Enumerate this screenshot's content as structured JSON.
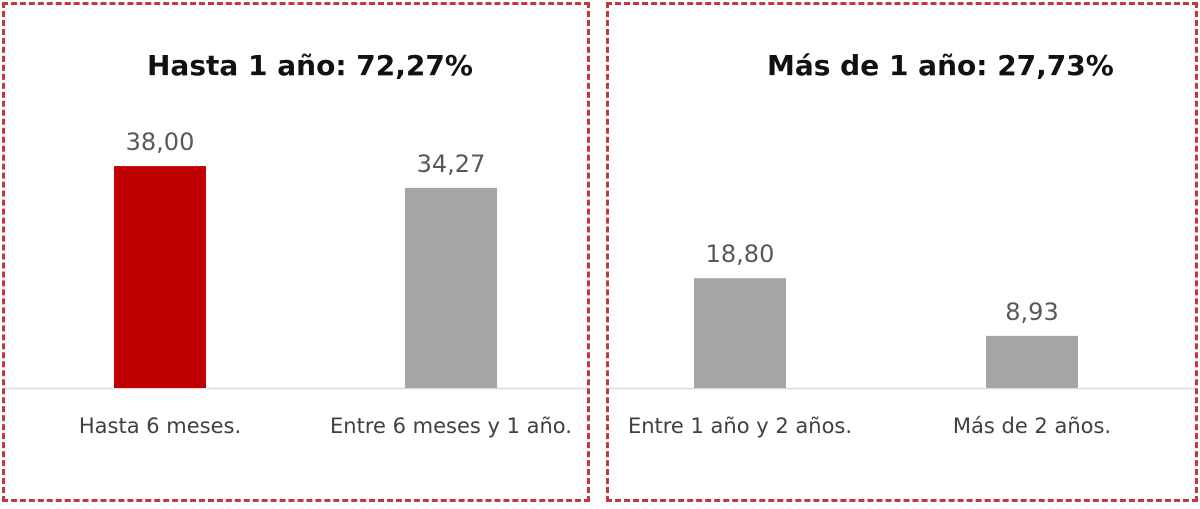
{
  "chart_data": [
    {
      "type": "bar",
      "title": "Hasta 1 año: 72,27%",
      "categories": [
        "Hasta 6 meses.",
        "Entre 6 meses y 1 año."
      ],
      "values": [
        38.0,
        34.27
      ],
      "value_labels": [
        "38,00",
        "34,27"
      ],
      "colors": [
        "#c00000",
        "#a6a6a6"
      ],
      "ylim": [
        0,
        45
      ],
      "grid": false,
      "legend": "none"
    },
    {
      "type": "bar",
      "title": "Más de 1 año: 27,73%",
      "categories": [
        "Entre 1 año y 2 años.",
        "Más de 2 años."
      ],
      "values": [
        18.8,
        8.93
      ],
      "value_labels": [
        "18,80",
        "8,93"
      ],
      "colors": [
        "#a6a6a6",
        "#a6a6a6"
      ],
      "ylim": [
        0,
        45
      ],
      "grid": false,
      "legend": "none"
    }
  ],
  "colors": {
    "border": "#c0393b",
    "axis": "#d9d9d9"
  }
}
